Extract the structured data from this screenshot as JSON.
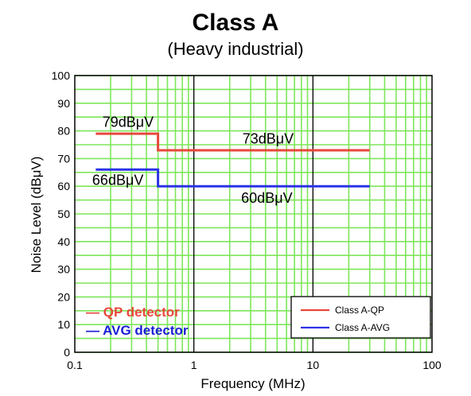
{
  "chart_data": {
    "type": "line",
    "title": "Class A",
    "subtitle": "(Heavy industrial)",
    "xlabel": "Frequency (MHz)",
    "ylabel": "Noise Level (dBμV)",
    "xscale": "log",
    "xlim": [
      0.1,
      100
    ],
    "ylim": [
      0,
      100
    ],
    "grid": true,
    "x_ticks": [
      {
        "value": 0.1,
        "label": "0.1"
      },
      {
        "value": 1,
        "label": "1"
      },
      {
        "value": 10,
        "label": "10"
      },
      {
        "value": 100,
        "label": "100"
      }
    ],
    "y_ticks": [
      {
        "value": 0,
        "label": "0"
      },
      {
        "value": 10,
        "label": "10"
      },
      {
        "value": 20,
        "label": "20"
      },
      {
        "value": 30,
        "label": "30"
      },
      {
        "value": 40,
        "label": "40"
      },
      {
        "value": 50,
        "label": "50"
      },
      {
        "value": 60,
        "label": "60"
      },
      {
        "value": 70,
        "label": "70"
      },
      {
        "value": 80,
        "label": "80"
      },
      {
        "value": 90,
        "label": "90"
      },
      {
        "value": 100,
        "label": "100"
      }
    ],
    "series": [
      {
        "name": "Class A-QP",
        "color": "#e8473b",
        "points": [
          [
            0.15,
            79
          ],
          [
            0.5,
            79
          ],
          [
            0.5,
            73
          ],
          [
            30,
            73
          ]
        ]
      },
      {
        "name": "Class A-AVG",
        "color": "#2b33e6",
        "points": [
          [
            0.15,
            66
          ],
          [
            0.5,
            66
          ],
          [
            0.5,
            60
          ],
          [
            30,
            60
          ]
        ]
      }
    ],
    "annotations": [
      {
        "text": "79dBμV",
        "x": 0.28,
        "y": 81.5
      },
      {
        "text": "73dBμV",
        "x": 4.2,
        "y": 75.5
      },
      {
        "text": "66dBμV",
        "x": 0.23,
        "y": 60.5
      },
      {
        "text": "60dBμV",
        "x": 4.1,
        "y": 54
      }
    ],
    "detector_labels": [
      {
        "text": "— QP detector",
        "color": "#e8473b"
      },
      {
        "text": "— AVG detector",
        "color": "#1a1fd6"
      }
    ],
    "legend": {
      "position": "bottom-right",
      "entries": [
        {
          "label": "Class A-QP",
          "color": "#e8473b"
        },
        {
          "label": "Class A-AVG",
          "color": "#2b33e6"
        }
      ]
    },
    "grid_color": "#7ee65a",
    "major_grid_color": "#000000"
  }
}
